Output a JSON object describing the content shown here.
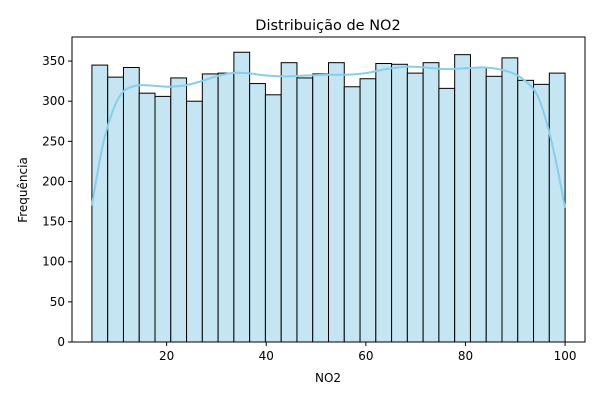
{
  "chart_data": {
    "type": "bar",
    "title": "Distribuição de NO2",
    "xlabel": "NO2",
    "ylabel": "Frequência",
    "xlim": [
      1.0,
      104.0
    ],
    "ylim": [
      0,
      380
    ],
    "xticks": [
      20,
      40,
      60,
      80,
      100
    ],
    "yticks": [
      0,
      50,
      100,
      150,
      200,
      250,
      300,
      350
    ],
    "bin_start": 5.0,
    "bin_width": 3.1667,
    "values": [
      345,
      330,
      342,
      310,
      306,
      329,
      300,
      334,
      335,
      361,
      322,
      308,
      348,
      329,
      334,
      348,
      318,
      328,
      347,
      346,
      335,
      348,
      316,
      358,
      342,
      331,
      354,
      326,
      321,
      335
    ],
    "bar_color": "#c5e5f2",
    "bar_edge_color": "#000000",
    "kde": {
      "x": [
        5,
        7,
        9,
        11,
        13,
        15,
        18,
        21,
        24,
        27,
        30,
        33,
        36,
        40,
        44,
        48,
        52,
        56,
        60,
        64,
        68,
        72,
        76,
        80,
        84,
        88,
        91,
        94,
        96,
        98,
        100
      ],
      "y": [
        170,
        240,
        285,
        310,
        318,
        320,
        319,
        318,
        320,
        325,
        331,
        335,
        335,
        332,
        331,
        332,
        333,
        333,
        335,
        340,
        343,
        342,
        340,
        341,
        342,
        338,
        330,
        312,
        280,
        230,
        167
      ],
      "color": "#87ceeb"
    },
    "grid": false,
    "legend": false
  }
}
